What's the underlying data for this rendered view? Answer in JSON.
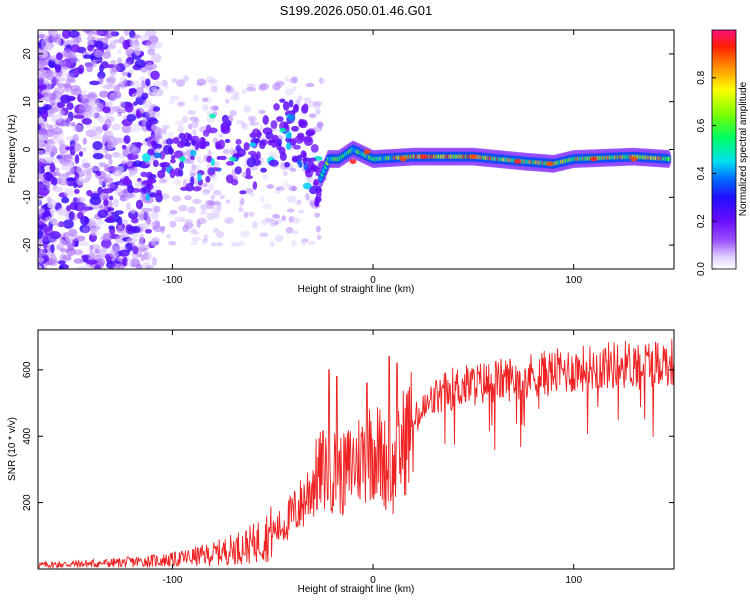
{
  "title": "S199.2026.050.01.46.G01",
  "colors": {
    "snr_line": "#ee2222",
    "axis": "#000000",
    "colormap": [
      "#ffffff",
      "#e6d6ff",
      "#b88cff",
      "#8a3cff",
      "#6a0dff",
      "#3a1cff",
      "#0060ff",
      "#00d0ff",
      "#00ff88",
      "#80ff00",
      "#ffff00",
      "#ff8800",
      "#ff2200",
      "#ff1070"
    ]
  },
  "chart_data": [
    {
      "type": "heatmap",
      "name": "spectrogram",
      "xlabel": "Height of straight line (km)",
      "ylabel": "Frequency (Hz)",
      "xlim": [
        -167,
        150
      ],
      "ylim": [
        -25,
        25
      ],
      "xticks": [
        -100,
        0,
        100
      ],
      "xtick_labels": [
        "-100",
        "0",
        "100"
      ],
      "yticks": [
        -20,
        -10,
        0,
        10,
        20
      ],
      "ytick_labels": [
        "-20",
        "-10",
        "0",
        "10",
        "20"
      ],
      "colorbar": {
        "label": "Normalized spectral amplitude",
        "range": [
          0,
          1
        ],
        "ticks": [
          0.0,
          0.2,
          0.4,
          0.6,
          0.8
        ],
        "tick_labels": [
          "0.0",
          "0.2",
          "0.4",
          "0.6",
          "0.8"
        ]
      },
      "ridge": {
        "description_points": [
          [
            -26,
            -6
          ],
          [
            -22,
            -2
          ],
          [
            -17,
            -2
          ],
          [
            -10,
            0
          ],
          [
            -5,
            -1
          ],
          [
            0,
            -2
          ],
          [
            20,
            -1.5
          ],
          [
            50,
            -1.5
          ],
          [
            75,
            -2.5
          ],
          [
            90,
            -3
          ],
          [
            100,
            -2
          ],
          [
            130,
            -1.5
          ],
          [
            148,
            -2
          ]
        ],
        "tail": [
          [
            -25,
            -7
          ],
          [
            -30,
            -5
          ],
          [
            -35,
            -2
          ],
          [
            -40,
            0
          ],
          [
            -45,
            2
          ],
          [
            -55,
            -2
          ],
          [
            -65,
            -3
          ],
          [
            -75,
            1
          ],
          [
            -85,
            -2
          ],
          [
            -95,
            -3
          ],
          [
            -105,
            -4
          ],
          [
            -115,
            -5
          ]
        ]
      }
    },
    {
      "type": "line",
      "name": "snr",
      "xlabel": "Height of straight line (km)",
      "ylabel": "SNR (10 * v/v)",
      "xlim": [
        -167,
        150
      ],
      "ylim": [
        0,
        720
      ],
      "xticks": [
        -100,
        0,
        100
      ],
      "xtick_labels": [
        "-100",
        "0",
        "100"
      ],
      "yticks": [
        200,
        400,
        600
      ],
      "ytick_labels": [
        "200",
        "400",
        "600"
      ],
      "trend": [
        [
          -167,
          12
        ],
        [
          -130,
          18
        ],
        [
          -100,
          28
        ],
        [
          -80,
          45
        ],
        [
          -60,
          75
        ],
        [
          -45,
          130
        ],
        [
          -35,
          200
        ],
        [
          -30,
          260
        ],
        [
          -25,
          300
        ],
        [
          -20,
          300
        ],
        [
          -15,
          280
        ],
        [
          -10,
          320
        ],
        [
          -5,
          340
        ],
        [
          0,
          370
        ],
        [
          5,
          330
        ],
        [
          10,
          280
        ],
        [
          15,
          380
        ],
        [
          20,
          440
        ],
        [
          30,
          510
        ],
        [
          40,
          545
        ],
        [
          60,
          565
        ],
        [
          80,
          585
        ],
        [
          100,
          600
        ],
        [
          120,
          615
        ],
        [
          150,
          625
        ]
      ],
      "spikes": [
        [
          -22,
          600
        ],
        [
          -18,
          580
        ],
        [
          -3,
          560
        ],
        [
          8,
          640
        ],
        [
          12,
          620
        ]
      ]
    }
  ]
}
